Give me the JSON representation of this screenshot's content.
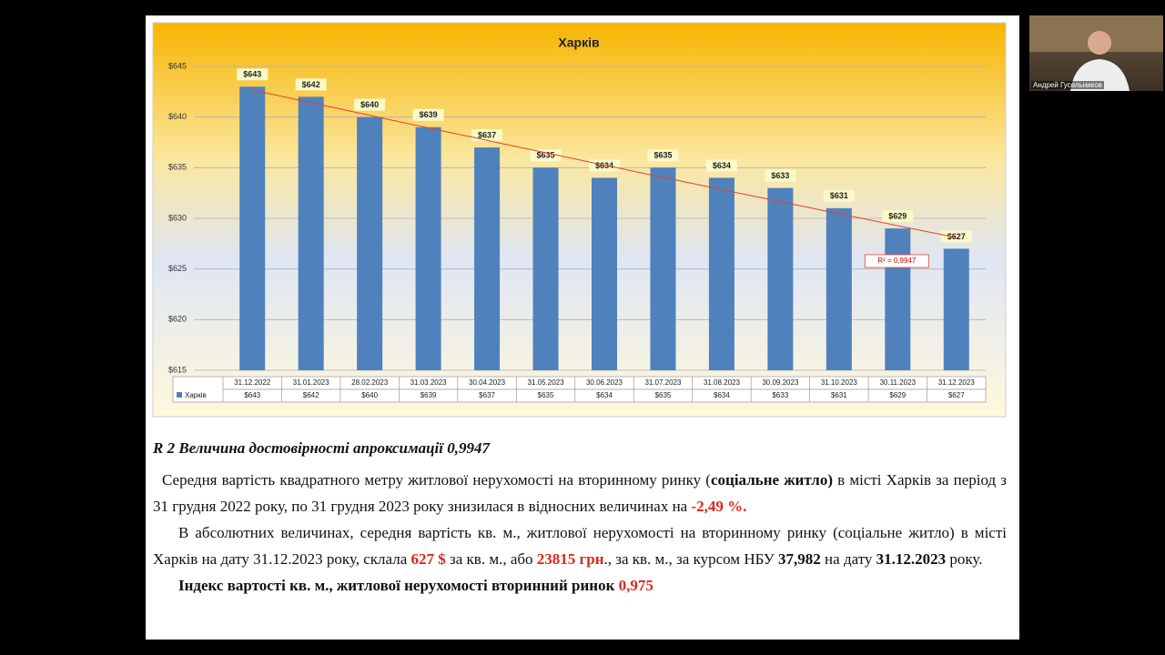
{
  "chart_data": {
    "type": "bar",
    "title": "Харків",
    "categories": [
      "31.12.2022",
      "31.01.2023",
      "28.02.2023",
      "31.03.2023",
      "30.04.2023",
      "31.05.2023",
      "30.06.2023",
      "31.07.2023",
      "31.08.2023",
      "30.09.2023",
      "31.10.2023",
      "30.11.2023",
      "31.12.2023"
    ],
    "series": [
      {
        "name": "Харків",
        "color": "#4f81bd",
        "values": [
          643,
          642,
          640,
          639,
          637,
          635,
          634,
          635,
          634,
          633,
          631,
          629,
          627
        ],
        "value_labels": [
          "$643",
          "$642",
          "$640",
          "$639",
          "$637",
          "$635",
          "$634",
          "$635",
          "$634",
          "$633",
          "$631",
          "$629",
          "$627"
        ]
      }
    ],
    "ylim": [
      615,
      645
    ],
    "yticks": [
      {
        "value": 615,
        "label": "$615"
      },
      {
        "value": 620,
        "label": "$620"
      },
      {
        "value": 625,
        "label": "$625"
      },
      {
        "value": 630,
        "label": "$630"
      },
      {
        "value": 635,
        "label": "$635"
      },
      {
        "value": 640,
        "label": "$640"
      },
      {
        "value": 645,
        "label": "$645"
      }
    ],
    "grid": true,
    "trendline": true,
    "trend_label": "R² = 0,9947",
    "trend_color": "#e8412c"
  },
  "document": {
    "heading": "R 2 Величина достовірності апроксимації 0,9947",
    "paragraphs": [
      [
        {
          "text": "Середня вартість квадратного метру житлової нерухомості на вторинному ринку (",
          "style": "plain"
        },
        {
          "text": "соціальне житло)",
          "style": "bold"
        },
        {
          "text": " в місті Харків за період з 31 грудня 2022 року, по 31 грудня 2023 року знизилася в відносних величинах на ",
          "style": "plain"
        },
        {
          "text": "-2,49 %.",
          "style": "bold-red"
        }
      ],
      [
        {
          "text": "В абсолютних величинах, середня вартість кв. м., житлової нерухомості на вторинному ринку (соціальне житло) в місті Харків на дату 31.12.2023 року, склала ",
          "style": "plain"
        },
        {
          "text": "627 $",
          "style": "bold-red"
        },
        {
          "text": " за кв. м., або ",
          "style": "plain"
        },
        {
          "text": "23815 грн",
          "style": "bold-red"
        },
        {
          "text": "., за кв. м., за курсом НБУ ",
          "style": "plain"
        },
        {
          "text": "37,982",
          "style": "bold"
        },
        {
          "text": " на дату ",
          "style": "plain"
        },
        {
          "text": "31.12.2023",
          "style": "bold"
        },
        {
          "text": " року.",
          "style": "plain"
        }
      ],
      [
        {
          "text": "Індекс вартості кв. м., житлової нерухомості вторинний ринок ",
          "style": "bold"
        },
        {
          "text": "0,975",
          "style": "bold-red"
        }
      ]
    ]
  },
  "participant": {
    "name": "Андрей Гусельников"
  }
}
